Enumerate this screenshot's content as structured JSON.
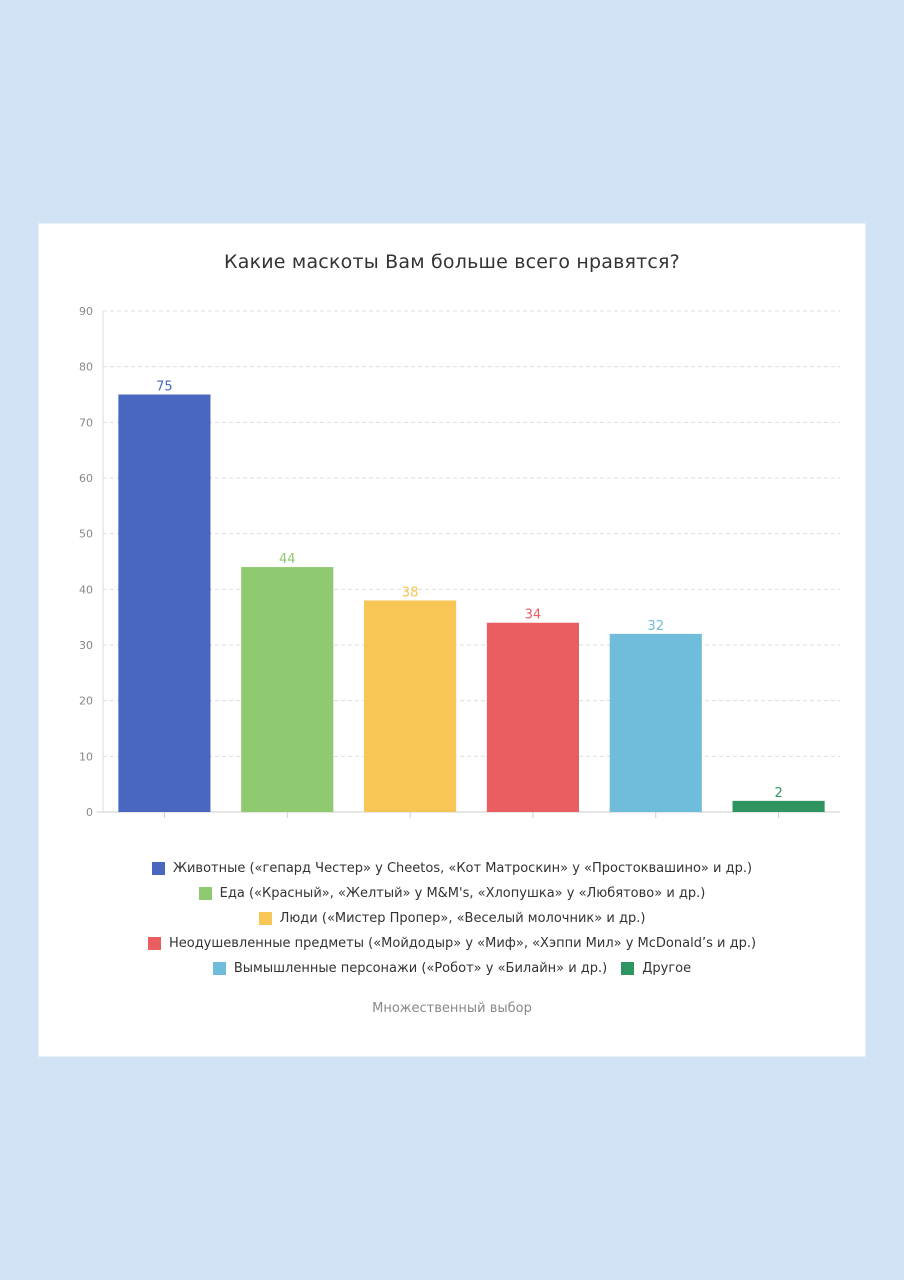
{
  "chart_data": {
    "type": "bar",
    "title": "Какие маскоты Вам больше всего нравятся?",
    "subtitle": "Множественный выбор",
    "xlabel": "",
    "ylabel": "",
    "ylim": [
      0,
      90
    ],
    "yticks": [
      0,
      10,
      20,
      30,
      40,
      50,
      60,
      70,
      80,
      90
    ],
    "grid": true,
    "legend_position": "bottom",
    "categories": [
      "Животные («гепард Честер» у Cheetos, «Кот Матроскин» у «Простоквашино» и др.)",
      "Еда («Красный», «Желтый» у M&M's, «Хлопушка» у «Любятово» и др.)",
      "Люди («Мистер Пропер», «Веселый молочник» и др.)",
      "Неодушевленные предметы («Мойдодыр» у «Миф», «Хэппи Мил» у McDonald’s и др.)",
      "Вымышленные персонажи («Робот» у «Билайн» и др.)",
      "Другое"
    ],
    "values": [
      75,
      44,
      38,
      34,
      32,
      2
    ],
    "colors": [
      "#4a67c0",
      "#8fc970",
      "#f8c656",
      "#ea5e62",
      "#6fbcdb",
      "#2e9460"
    ]
  }
}
